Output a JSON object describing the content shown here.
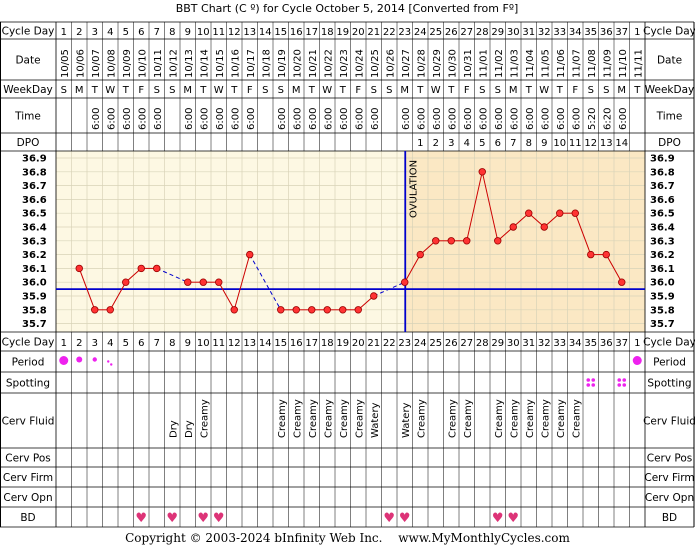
{
  "title": "BBT Chart (C º) for Cycle October 5, 2014  [Converted from Fº]",
  "footer": {
    "copyright": "Copyright © 2003-2024 bInfinity Web Inc.",
    "site": "www.MyMonthlyCycles.com"
  },
  "row_labels": {
    "cycle_day": "Cycle Day",
    "date": "Date",
    "weekday": "WeekDay",
    "time": "Time",
    "dpo": "DPO",
    "period": "Period",
    "spotting": "Spotting",
    "cerv_fluid": "Cerv Fluid",
    "cerv_pos": "Cerv Pos",
    "cerv_firm": "Cerv Firm",
    "cerv_opn": "Cerv Opn",
    "bd": "BD"
  },
  "colors": {
    "accent": "#0000cc",
    "temp_line": "#cc0000",
    "point_fill": "#ff3333",
    "pre_ovulation_bg": "#fdf8e3",
    "post_ovulation_bg": "#fbe8c4",
    "period_marker": "#ee22ee",
    "heart": "#dd3377"
  },
  "chart_data": {
    "type": "line",
    "title": "BBT Chart (C º) for Cycle October 5, 2014  [Converted from Fº]",
    "cycle_days": [
      "1",
      "2",
      "3",
      "4",
      "5",
      "6",
      "7",
      "8",
      "9",
      "10",
      "11",
      "12",
      "13",
      "14",
      "15",
      "16",
      "17",
      "18",
      "19",
      "20",
      "21",
      "22",
      "23",
      "24",
      "25",
      "26",
      "27",
      "28",
      "29",
      "30",
      "31",
      "32",
      "33",
      "34",
      "35",
      "36",
      "37",
      "1"
    ],
    "dates": [
      "10/05",
      "10/06",
      "10/07",
      "10/08",
      "10/09",
      "10/10",
      "10/11",
      "10/12",
      "10/13",
      "10/14",
      "10/15",
      "10/16",
      "10/17",
      "10/18",
      "10/19",
      "10/20",
      "10/21",
      "10/22",
      "10/23",
      "10/24",
      "10/25",
      "10/26",
      "10/27",
      "10/28",
      "10/29",
      "10/30",
      "10/31",
      "11/01",
      "11/02",
      "11/03",
      "11/04",
      "11/05",
      "11/06",
      "11/07",
      "11/08",
      "11/09",
      "11/10",
      "11/11"
    ],
    "weekdays": [
      "S",
      "M",
      "T",
      "W",
      "T",
      "F",
      "S",
      "S",
      "M",
      "T",
      "W",
      "T",
      "F",
      "S",
      "S",
      "M",
      "T",
      "W",
      "T",
      "F",
      "S",
      "S",
      "M",
      "T",
      "W",
      "T",
      "F",
      "S",
      "S",
      "M",
      "T",
      "W",
      "T",
      "F",
      "S",
      "S",
      "M",
      "T"
    ],
    "times": [
      "",
      "",
      "6:00",
      "6:00",
      "6:00",
      "6:00",
      "6:00",
      "",
      "6:00",
      "6:00",
      "6:00",
      "6:00",
      "6:00",
      "",
      "6:00",
      "6:00",
      "6:00",
      "6:00",
      "6:00",
      "6:00",
      "6:00",
      "",
      "6:00",
      "6:00",
      "6:00",
      "6:00",
      "6:00",
      "6:00",
      "6:00",
      "6:00",
      "6:00",
      "6:00",
      "6:00",
      "6:00",
      "5:20",
      "6:20",
      "6:00",
      ""
    ],
    "dpo": [
      "",
      "",
      "",
      "",
      "",
      "",
      "",
      "",
      "",
      "",
      "",
      "",
      "",
      "",
      "",
      "",
      "",
      "",
      "",
      "",
      "",
      "",
      "",
      "1",
      "2",
      "3",
      "4",
      "5",
      "6",
      "7",
      "8",
      "9",
      "10",
      "11",
      "12",
      "13",
      "14",
      ""
    ],
    "temps": [
      null,
      36.1,
      35.8,
      35.8,
      36.0,
      36.1,
      36.1,
      null,
      36.0,
      36.0,
      36.0,
      35.8,
      36.2,
      null,
      35.8,
      35.8,
      35.8,
      35.8,
      35.8,
      35.8,
      35.9,
      null,
      36.0,
      36.2,
      36.3,
      36.3,
      36.3,
      36.8,
      36.3,
      36.4,
      36.5,
      36.4,
      36.5,
      36.5,
      36.2,
      36.2,
      36.0,
      null
    ],
    "y_ticks": [
      "36.9",
      "36.8",
      "36.7",
      "36.6",
      "36.5",
      "36.4",
      "36.3",
      "36.2",
      "36.1",
      "36.0",
      "35.9",
      "35.8",
      "35.7"
    ],
    "ylim": [
      35.7,
      36.9
    ],
    "coverline": 35.95,
    "ovulation_day": 23,
    "ovulation_label": "OVULATION",
    "grid": true
  },
  "period": [
    "large",
    "medium",
    "small",
    "tiny",
    "",
    "",
    "",
    "",
    "",
    "",
    "",
    "",
    "",
    "",
    "",
    "",
    "",
    "",
    "",
    "",
    "",
    "",
    "",
    "",
    "",
    "",
    "",
    "",
    "",
    "",
    "",
    "",
    "",
    "",
    "",
    "",
    "",
    "large"
  ],
  "spotting": [
    "",
    "",
    "",
    "",
    "",
    "",
    "",
    "",
    "",
    "",
    "",
    "",
    "",
    "",
    "",
    "",
    "",
    "",
    "",
    "",
    "",
    "",
    "",
    "",
    "",
    "",
    "",
    "",
    "",
    "",
    "",
    "",
    "",
    "",
    "yes",
    "",
    "yes",
    ""
  ],
  "cerv_fluid": [
    "",
    "",
    "",
    "",
    "",
    "",
    "",
    "Dry",
    "Dry",
    "Creamy",
    "",
    "",
    "",
    "",
    "Creamy",
    "Creamy",
    "Creamy",
    "Creamy",
    "Creamy",
    "Creamy",
    "Watery",
    "",
    "Watery",
    "Creamy",
    "",
    "Creamy",
    "Creamy",
    "",
    "Creamy",
    "Creamy",
    "Creamy",
    "Creamy",
    "Creamy",
    "Creamy",
    "",
    "",
    "",
    ""
  ],
  "bd": [
    "",
    "",
    "",
    "",
    "",
    "yes",
    "",
    "yes",
    "",
    "yes",
    "yes",
    "",
    "",
    "",
    "",
    "",
    "",
    "",
    "",
    "",
    "",
    "yes",
    "yes",
    "",
    "",
    "",
    "",
    "",
    "yes",
    "yes",
    "",
    "",
    "",
    "",
    "",
    "",
    "",
    ""
  ]
}
